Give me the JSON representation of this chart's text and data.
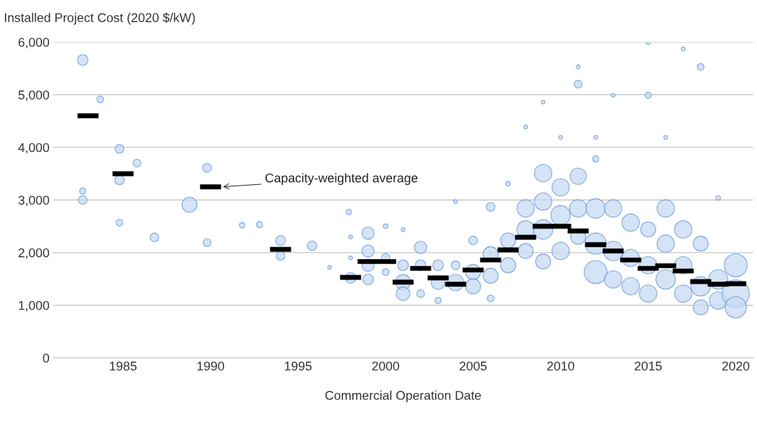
{
  "chart_data": {
    "type": "bubble",
    "ylabel": "Installed Project Cost (2020 $/kW)",
    "xlabel": "Commercial Operation Date",
    "xlim": [
      1981,
      2021
    ],
    "xticks": [
      1985,
      1990,
      1995,
      2000,
      2005,
      2010,
      2015,
      2020
    ],
    "ylim": [
      0,
      6000
    ],
    "yticks": [
      0,
      {
        "value": 1000,
        "label": "1,000"
      },
      {
        "value": 2000,
        "label": "2,000"
      },
      {
        "value": 3000,
        "label": "3,000"
      },
      {
        "value": 4000,
        "label": "4,000"
      },
      {
        "value": 5000,
        "label": "5,000"
      },
      {
        "value": 6000,
        "label": "6,000"
      }
    ],
    "grid": "y",
    "annotations": [
      {
        "text": "Capacity-weighted average",
        "x": 1990.6,
        "y": 3250
      }
    ],
    "series": [
      {
        "color": "#c5d9f1",
        "x": [
          1982.7,
          1983.7,
          1982.7,
          1982.7,
          1984.8,
          1984.8,
          1984.8,
          1985.8,
          1986.8,
          1988.8,
          1989.8,
          1989.8,
          1991.8,
          1992.8,
          1994,
          1994,
          1995.8,
          1996.8,
          1997.9,
          1998,
          1998,
          1998,
          1999,
          1999,
          1999,
          1999,
          2000,
          2000,
          2000,
          2001,
          2001,
          2001,
          2001,
          2002,
          2002,
          2002,
          2003,
          2003,
          2003,
          2004,
          2004,
          2004,
          2005,
          2005,
          2005,
          2006,
          2006,
          2006,
          2006,
          2007,
          2007,
          2007,
          2008,
          2008,
          2008,
          2008,
          2009,
          2009,
          2009,
          2009,
          2009,
          2010,
          2010,
          2010,
          2010,
          2011,
          2011,
          2011,
          2011,
          2011,
          2012,
          2012,
          2012,
          2012,
          2012,
          2013,
          2013,
          2013,
          2013,
          2014,
          2014,
          2014,
          2015,
          2015,
          2015,
          2015,
          2015,
          2016,
          2016,
          2016,
          2016,
          2017,
          2017,
          2017,
          2017,
          2018,
          2018,
          2018,
          2018,
          2019,
          2019,
          2019,
          2020,
          2020,
          2020
        ],
        "values": [
          5660,
          4910,
          3000,
          3170,
          3970,
          3380,
          2570,
          3700,
          2290,
          2910,
          3610,
          2190,
          2520,
          2530,
          2230,
          1940,
          2130,
          1720,
          2770,
          1520,
          1900,
          2300,
          2370,
          2030,
          1760,
          1490,
          1900,
          1630,
          2500,
          1440,
          1220,
          1760,
          2440,
          2100,
          1760,
          1220,
          1760,
          1430,
          1090,
          1430,
          1760,
          2970,
          1630,
          1360,
          2230,
          1970,
          1560,
          2870,
          1130,
          2230,
          1760,
          3310,
          2440,
          2840,
          2030,
          4390,
          3510,
          2970,
          2440,
          1830,
          4860,
          3240,
          2710,
          2030,
          4190,
          3450,
          2840,
          2300,
          5200,
          5530,
          2840,
          2170,
          1630,
          3780,
          4190,
          2840,
          2030,
          1490,
          4990,
          2570,
          1900,
          1360,
          2440,
          1760,
          1220,
          4990,
          5990,
          2840,
          2170,
          1490,
          4190,
          2440,
          1760,
          1220,
          5870,
          2170,
          1360,
          960,
          5530,
          1490,
          1090,
          3040,
          1760,
          1220,
          960
        ],
        "sizes": [
          0.15,
          0.06,
          0.1,
          0.05,
          0.1,
          0.12,
          0.06,
          0.08,
          0.1,
          0.3,
          0.1,
          0.08,
          0.04,
          0.05,
          0.13,
          0.1,
          0.12,
          0.02,
          0.04,
          0.15,
          0.02,
          0.02,
          0.2,
          0.2,
          0.2,
          0.15,
          0.1,
          0.06,
          0.03,
          0.3,
          0.25,
          0.15,
          0.02,
          0.2,
          0.15,
          0.08,
          0.15,
          0.25,
          0.05,
          0.35,
          0.1,
          0.02,
          0.3,
          0.3,
          0.1,
          0.3,
          0.3,
          0.1,
          0.06,
          0.3,
          0.3,
          0.03,
          0.4,
          0.4,
          0.3,
          0.02,
          0.4,
          0.4,
          0.5,
          0.3,
          0.02,
          0.4,
          0.5,
          0.4,
          0.02,
          0.35,
          0.4,
          0.3,
          0.08,
          0.02,
          0.5,
          0.6,
          0.7,
          0.05,
          0.02,
          0.4,
          0.5,
          0.4,
          0.02,
          0.4,
          0.4,
          0.4,
          0.3,
          0.4,
          0.4,
          0.05,
          0.02,
          0.4,
          0.4,
          0.5,
          0.02,
          0.4,
          0.4,
          0.4,
          0.02,
          0.3,
          0.5,
          0.3,
          0.06,
          0.5,
          0.4,
          0.03,
          0.7,
          1,
          0.6
        ]
      },
      {
        "type": "line",
        "color": "#000000",
        "line_style": "solid",
        "marker": "none",
        "x": [
          1982.4,
          1983.6,
          null,
          1984.4,
          1985.6,
          null,
          1989.4,
          1990.6,
          null,
          1993.4,
          1994.6,
          null,
          1997.4,
          1998.6,
          null,
          1998.4,
          1999.6,
          null,
          1999.4,
          2000.6,
          null,
          2000.4,
          2001.6,
          null,
          2001.4,
          2002.6,
          null,
          2002.4,
          2003.6,
          null,
          2003.4,
          2004.6,
          null,
          2004.4,
          2005.6,
          null,
          2005.4,
          2006.6,
          null,
          2006.4,
          2007.6,
          null,
          2007.4,
          2008.6,
          null,
          2008.4,
          2009.6,
          null,
          2009.4,
          2010.6,
          null,
          2010.4,
          2011.6,
          null,
          2011.4,
          2012.6,
          null,
          2012.4,
          2013.6,
          null,
          2013.4,
          2014.6,
          null,
          2014.4,
          2015.6,
          null,
          2015.4,
          2016.6,
          null,
          2016.4,
          2017.6,
          null,
          2017.4,
          2018.6,
          null,
          2018.4,
          2019.6,
          null,
          2019.4,
          2020.6
        ],
        "values": [
          4600,
          4600,
          null,
          3500,
          3500,
          null,
          3250,
          3250,
          null,
          2060,
          2060,
          null,
          1530,
          1530,
          null,
          1830,
          1830,
          null,
          1830,
          1830,
          null,
          1440,
          1440,
          null,
          1700,
          1700,
          null,
          1520,
          1520,
          null,
          1400,
          1400,
          null,
          1670,
          1670,
          null,
          1860,
          1860,
          null,
          2050,
          2050,
          null,
          2290,
          2290,
          null,
          2500,
          2500,
          null,
          2500,
          2500,
          null,
          2410,
          2410,
          null,
          2150,
          2150,
          null,
          2030,
          2030,
          null,
          1860,
          1860,
          null,
          1700,
          1700,
          null,
          1750,
          1750,
          null,
          1650,
          1650,
          null,
          1450,
          1450,
          null,
          1400,
          1400,
          null,
          1410,
          1410
        ]
      }
    ]
  }
}
